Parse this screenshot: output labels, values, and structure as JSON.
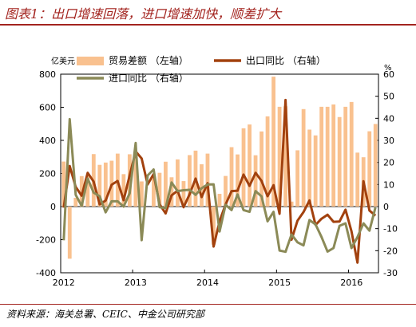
{
  "figure": {
    "title": "图表1：出口增速回落，进口增速加快，顺差扩大",
    "source": "资料来源：海关总署、CEIC、中金公司研究部",
    "colors": {
      "title": "#a3241f",
      "rule": "#a3241f"
    }
  },
  "chart_data": {
    "type": "bar+line",
    "left_axis": {
      "unit": "亿美元",
      "ylim": [
        -400,
        800
      ],
      "ticks": [
        -400,
        -200,
        0,
        200,
        400,
        600,
        800
      ]
    },
    "right_axis": {
      "unit": "%",
      "ylim": [
        -30,
        60
      ],
      "ticks": [
        -30,
        -20,
        -10,
        0,
        10,
        20,
        30,
        40,
        50,
        60
      ]
    },
    "x_axis": {
      "tick_labels": [
        "2012",
        "2013",
        "2014",
        "2015",
        "2016"
      ],
      "start": "2012-01",
      "end": "2016-05"
    },
    "grid": false,
    "legend_position": "top",
    "series": [
      {
        "name": "贸易差额 （左轴）",
        "type": "bar",
        "axis": "left",
        "color": "#f9c18f",
        "values": [
          272,
          -315,
          53,
          184,
          187,
          317,
          252,
          266,
          277,
          320,
          196,
          316,
          292,
          152,
          0,
          181,
          204,
          271,
          177,
          285,
          154,
          311,
          338,
          256,
          320,
          -230,
          77,
          185,
          359,
          315,
          473,
          496,
          310,
          454,
          545,
          785,
          603,
          606,
          30,
          340,
          589,
          465,
          430,
          603,
          603,
          617,
          541,
          603,
          632,
          326,
          298,
          455,
          499
        ]
      },
      {
        "name": "出口同比 （右轴）",
        "type": "line",
        "axis": "right",
        "color": "#a2410e",
        "values": [
          -0.5,
          18.4,
          8.9,
          4.9,
          15.3,
          11.3,
          1.0,
          2.7,
          9.9,
          11.6,
          2.9,
          14.1,
          25.0,
          21.8,
          10.0,
          14.7,
          1.0,
          -3.1,
          5.1,
          7.2,
          -0.3,
          5.6,
          12.7,
          4.3,
          10.6,
          -18.1,
          -6.6,
          0.9,
          7.0,
          7.2,
          14.5,
          9.4,
          15.3,
          11.6,
          4.7,
          9.7,
          -3.3,
          48.3,
          -15.0,
          -6.4,
          -2.5,
          2.8,
          -8.3,
          -5.5,
          -3.7,
          -6.9,
          -6.8,
          -1.4,
          -11.2,
          -25.4,
          11.5,
          -1.8,
          -4.1
        ]
      },
      {
        "name": "进口同比 （右轴）",
        "type": "line",
        "axis": "right",
        "color": "#8b8a57",
        "values": [
          -15.3,
          39.6,
          5.3,
          0.3,
          12.7,
          6.3,
          4.7,
          -2.6,
          2.4,
          2.4,
          0.0,
          6.0,
          28.8,
          -15.2,
          14.1,
          16.8,
          -0.3,
          -0.7,
          10.9,
          7.0,
          7.4,
          7.6,
          5.3,
          8.3,
          10.0,
          10.1,
          -11.3,
          0.8,
          -1.6,
          5.5,
          -1.6,
          -2.4,
          7.0,
          4.6,
          -6.7,
          -2.4,
          -19.9,
          -20.5,
          -12.7,
          -16.2,
          -17.6,
          -6.1,
          -8.1,
          -13.8,
          -20.4,
          -18.8,
          -8.7,
          -7.6,
          -18.8,
          -13.8,
          -7.6,
          -10.9,
          -0.4
        ]
      }
    ]
  }
}
